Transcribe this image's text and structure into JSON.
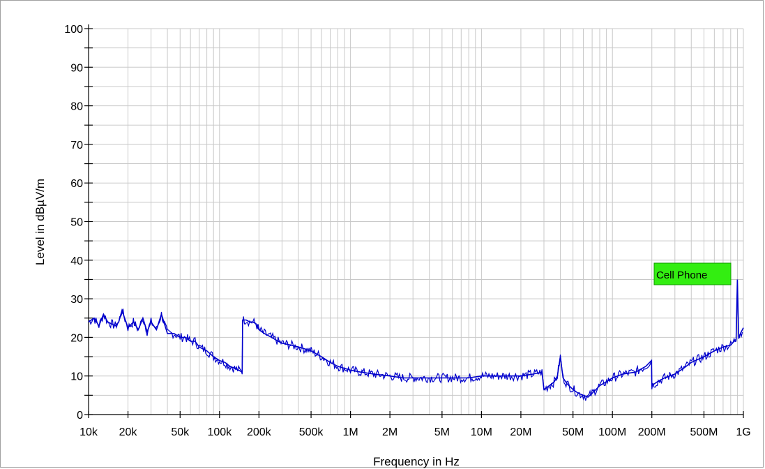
{
  "chart_data": {
    "type": "line",
    "title": "",
    "xlabel": "Frequency in Hz",
    "ylabel": "Level in dBµV/m",
    "x_scale": "log",
    "xlim": [
      10000,
      1000000000
    ],
    "ylim": [
      0,
      100
    ],
    "grid": true,
    "x_ticks": [
      {
        "value": 10000,
        "label": "10k"
      },
      {
        "value": 20000,
        "label": "20k"
      },
      {
        "value": 50000,
        "label": "50k"
      },
      {
        "value": 100000,
        "label": "100k"
      },
      {
        "value": 200000,
        "label": "200k"
      },
      {
        "value": 500000,
        "label": "500k"
      },
      {
        "value": 1000000,
        "label": "1M"
      },
      {
        "value": 2000000,
        "label": "2M"
      },
      {
        "value": 5000000,
        "label": "5M"
      },
      {
        "value": 10000000,
        "label": "10M"
      },
      {
        "value": 20000000,
        "label": "20M"
      },
      {
        "value": 50000000,
        "label": "50M"
      },
      {
        "value": 100000000,
        "label": "100M"
      },
      {
        "value": 200000000,
        "label": "200M"
      },
      {
        "value": 500000000,
        "label": "500M"
      },
      {
        "value": 1000000000,
        "label": "1G"
      }
    ],
    "y_ticks": [
      0,
      10,
      20,
      30,
      40,
      50,
      60,
      70,
      80,
      90,
      100
    ],
    "series": [
      {
        "color": "#0000cc",
        "x": [
          10000,
          11000,
          12000,
          13000,
          14000,
          15000,
          16000,
          17000,
          18000,
          20000,
          22000,
          24000,
          26000,
          28000,
          30000,
          33000,
          36000,
          40000,
          45000,
          50000,
          55000,
          60000,
          65000,
          70000,
          80000,
          90000,
          100000,
          110000,
          120000,
          130000,
          140000,
          149000,
          150000,
          160000,
          170000,
          180000,
          190000,
          200000,
          220000,
          250000,
          280000,
          300000,
          350000,
          400000,
          450000,
          500000,
          600000,
          700000,
          800000,
          1000000,
          1200000,
          1500000,
          2000000,
          2500000,
          3000000,
          4000000,
          5000000,
          6000000,
          8000000,
          10000000,
          13000000,
          16000000,
          20000000,
          25000000,
          29000000,
          30000000,
          33000000,
          36000000,
          38000000,
          40000000,
          42000000,
          45000000,
          50000000,
          55000000,
          60000000,
          65000000,
          70000000,
          75000000,
          80000000,
          90000000,
          100000000,
          120000000,
          150000000,
          180000000,
          199000000,
          200000000,
          220000000,
          250000000,
          300000000,
          350000000,
          400000000,
          500000000,
          600000000,
          700000000,
          800000000,
          850000000,
          880000000,
          900000000,
          920000000,
          950000000,
          1000000000
        ],
        "y": [
          24,
          25,
          23,
          26,
          24,
          23.5,
          23,
          24,
          27,
          22.5,
          24,
          22,
          25,
          21.5,
          24,
          22,
          26,
          21,
          21,
          20,
          20,
          19,
          19,
          17.5,
          16.5,
          15,
          14,
          13.5,
          12.5,
          12,
          11.5,
          11,
          24.5,
          24.5,
          24,
          24,
          23.5,
          22,
          21,
          20,
          19,
          18.5,
          18,
          17.5,
          17,
          16.5,
          15,
          13.5,
          12.5,
          11.5,
          11,
          10.5,
          10,
          9.5,
          9.5,
          9.5,
          9.5,
          9.5,
          9.5,
          10,
          10,
          10,
          10,
          10.5,
          11,
          6.5,
          7.5,
          8.5,
          10,
          15,
          9.5,
          8,
          6.5,
          5.5,
          5,
          4.5,
          5.5,
          6.5,
          7.5,
          8.5,
          9.5,
          10.5,
          11,
          12.5,
          14,
          7.5,
          8.5,
          9.5,
          10.5,
          12,
          13.5,
          15,
          16.5,
          17.5,
          18,
          19,
          19.5,
          35,
          20,
          21,
          22.5
        ]
      }
    ],
    "annotations": [
      {
        "text": "Cell Phone",
        "background": "#33ee11",
        "x": 900000000,
        "y": 37
      }
    ]
  }
}
